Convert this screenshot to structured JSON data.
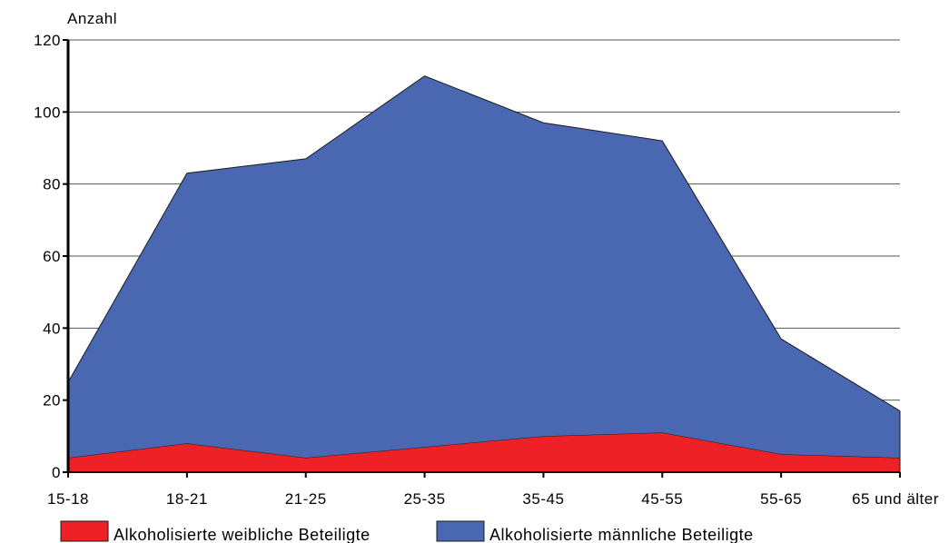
{
  "chart_data": {
    "type": "area",
    "stacked": true,
    "title": "",
    "xlabel": "",
    "ylabel": "Anzahl",
    "ylim": [
      0,
      120
    ],
    "yticks": [
      0,
      20,
      40,
      60,
      80,
      100,
      120
    ],
    "grid": true,
    "legend_position": "bottom",
    "categories": [
      "15-18",
      "18-21",
      "21-25",
      "25-35",
      "35-45",
      "45-55",
      "55-65",
      "65 und älter"
    ],
    "series": [
      {
        "name": "Alkoholisierte weibliche Beteiligte",
        "color": "#ee2127",
        "values": [
          4,
          8,
          4,
          7,
          10,
          11,
          5,
          4
        ]
      },
      {
        "name": "Alkoholisierte männliche Beteiligte",
        "color": "#4a68b2",
        "values": [
          21,
          75,
          83,
          103,
          87,
          81,
          32,
          13
        ]
      }
    ]
  }
}
